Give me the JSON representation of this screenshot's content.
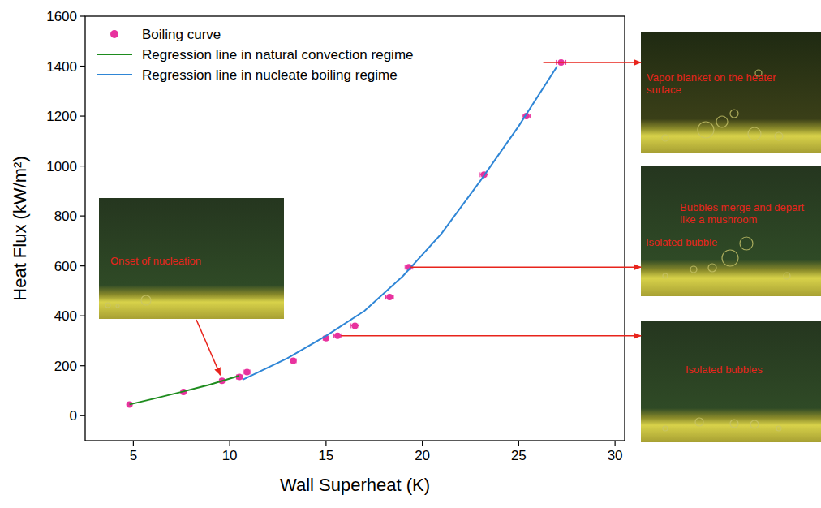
{
  "chart_data": {
    "type": "scatter",
    "xlabel": "Wall Superheat (K)",
    "ylabel": "Heat Flux (kW/m²)",
    "xlim": [
      2.5,
      30.5
    ],
    "xticks": [
      5,
      10,
      15,
      20,
      25,
      30
    ],
    "ylim": [
      -100,
      1600
    ],
    "yticks": [
      0,
      200,
      400,
      600,
      800,
      1000,
      1200,
      1400,
      1600
    ],
    "grid": false,
    "legend": "upper left",
    "series": [
      {
        "name": "Boiling curve",
        "type": "scatter",
        "color": "#e8329e",
        "marker": "circle",
        "x": [
          4.8,
          7.6,
          9.6,
          10.5,
          10.9,
          13.3,
          15.0,
          15.6,
          16.5,
          18.3,
          19.3,
          23.2,
          25.4,
          27.2
        ],
        "values": [
          45,
          95,
          140,
          155,
          175,
          220,
          310,
          320,
          360,
          475,
          595,
          965,
          1200,
          1415
        ],
        "x_errors": [
          0.1,
          0.1,
          0.1,
          0.15,
          0.15,
          0.15,
          0.15,
          0.2,
          0.2,
          0.2,
          0.2,
          0.2,
          0.2,
          0.25
        ]
      },
      {
        "name": "Regression line in natural convection regime",
        "type": "line",
        "color": "#1e8c1e",
        "line_style": "solid",
        "x": [
          4.8,
          6.0,
          7.6,
          9.0,
          10.5
        ],
        "values": [
          45,
          67,
          97,
          125,
          160
        ]
      },
      {
        "name": "Regression line in nucleate boiling regime",
        "type": "line",
        "color": "#2f86d6",
        "line_style": "solid",
        "x": [
          10.7,
          13.0,
          15.0,
          17.0,
          19.0,
          21.0,
          23.0,
          25.0,
          27.0
        ],
        "values": [
          145,
          230,
          320,
          420,
          560,
          730,
          940,
          1160,
          1400
        ]
      }
    ],
    "annotations": [
      {
        "text": "Onset of nucleation"
      },
      {
        "text": "Vapor blanket on the heater surface"
      },
      {
        "text": "Bubbles merge and depart like a mushroom"
      },
      {
        "text": "Isolated bubble"
      },
      {
        "text": "Isolated bubbles"
      }
    ]
  }
}
